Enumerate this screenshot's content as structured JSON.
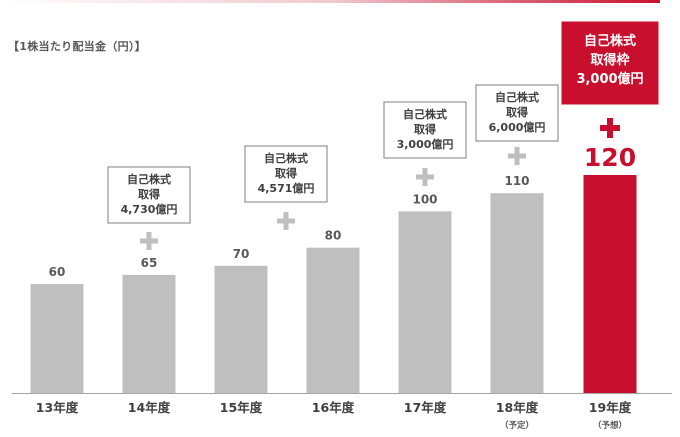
{
  "title": "【1株当たり配当金（円）】",
  "colors": {
    "bar": "#bfbfbf",
    "highlight": "#c8102e",
    "plus": "#bfbfbf",
    "text": "#404040",
    "axis": "#a6a6a6"
  },
  "chart_data": {
    "type": "bar",
    "title": "【1株当たり配当金（円）】",
    "xlabel": "",
    "ylabel": "",
    "categories": [
      "13年度",
      "14年度",
      "15年度",
      "16年度",
      "17年度",
      "18年度",
      "19年度"
    ],
    "category_notes": [
      "",
      "",
      "",
      "",
      "",
      "（予定）",
      "（予想）"
    ],
    "values": [
      60,
      65,
      70,
      80,
      100,
      110,
      120
    ],
    "value_labels": [
      "60",
      "65",
      "70",
      "80",
      "100",
      "110",
      "120"
    ],
    "highlight_index": 6,
    "ylim": [
      0,
      120
    ],
    "grid": false,
    "annotations": [
      {
        "category_index": 1,
        "lines": [
          "自己株式",
          "取得",
          "4,730億円"
        ],
        "highlight": false
      },
      {
        "category_index": 2,
        "lines": [
          "自己株式",
          "取得",
          "4,571億円"
        ],
        "highlight": false
      },
      {
        "category_index": 4,
        "lines": [
          "自己株式",
          "取得",
          "3,000億円"
        ],
        "highlight": false
      },
      {
        "category_index": 5,
        "lines": [
          "自己株式",
          "取得",
          "6,000億円"
        ],
        "highlight": false
      },
      {
        "category_index": 6,
        "lines": [
          "自己株式",
          "取得枠",
          "3,000億円"
        ],
        "highlight": true
      }
    ]
  }
}
